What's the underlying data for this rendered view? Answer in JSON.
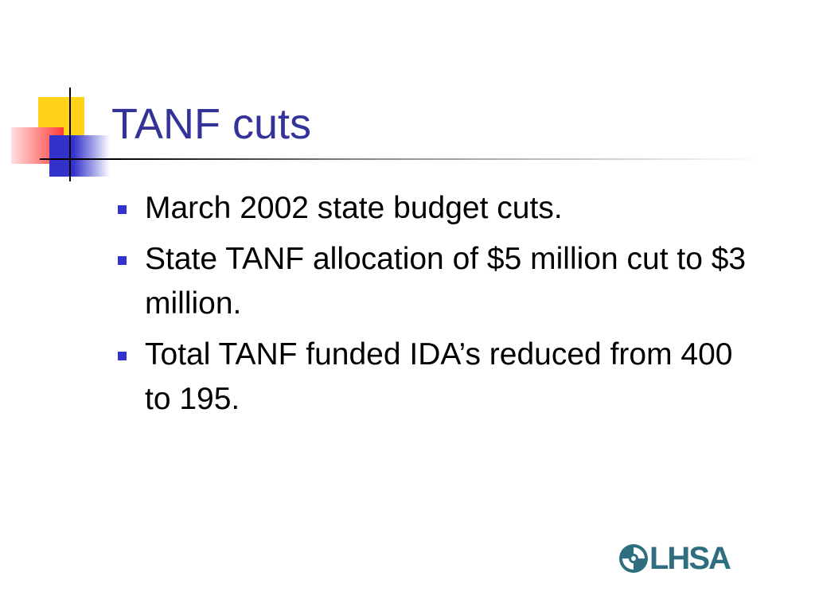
{
  "slide": {
    "title": "TANF cuts",
    "bullets": [
      "March 2002 state budget cuts.",
      "State TANF allocation of $5 million cut to $3 million.",
      "Total TANF funded IDA’s reduced from 400 to 195."
    ],
    "logo": "LHSA"
  }
}
